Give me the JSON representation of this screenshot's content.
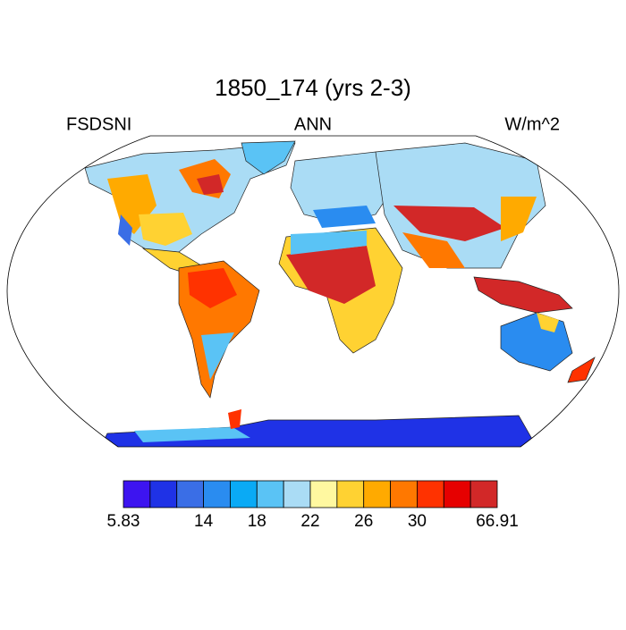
{
  "title": "1850_174 (yrs 2-3)",
  "left_string": "FSDSNI",
  "center_string": "ANN",
  "right_string": "W/m^2",
  "colorbar": {
    "colors": [
      "#3d14f0",
      "#1f32e6",
      "#3a6ee6",
      "#2a8cf0",
      "#0aaaf5",
      "#5ac3f5",
      "#aadcf5",
      "#fff8a0",
      "#ffd232",
      "#ffaa00",
      "#ff7800",
      "#ff3200",
      "#e60000",
      "#d22828"
    ],
    "labels": [
      "5.83",
      "14",
      "18",
      "22",
      "26",
      "30",
      "66.91"
    ]
  }
}
